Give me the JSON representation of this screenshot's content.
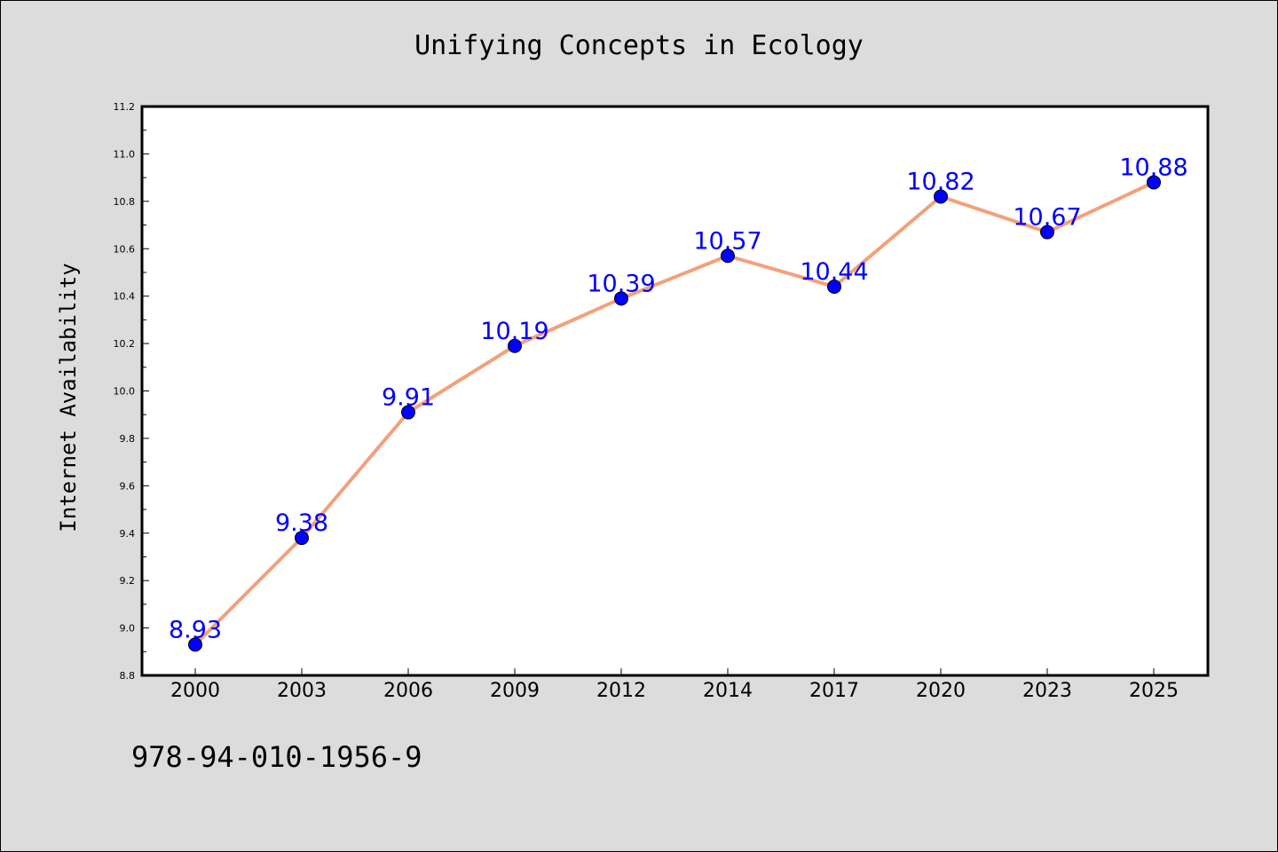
{
  "chart_data": {
    "type": "line",
    "title": "Unifying Concepts in Ecology",
    "xlabel": "",
    "ylabel": "Internet Availability",
    "categories": [
      "2000",
      "2003",
      "2006",
      "2009",
      "2012",
      "2014",
      "2017",
      "2020",
      "2023",
      "2025"
    ],
    "values": [
      8.93,
      9.38,
      9.91,
      10.19,
      10.39,
      10.57,
      10.44,
      10.82,
      10.67,
      10.88
    ],
    "data_labels": [
      "8.93",
      "9.38",
      "9.91",
      "10.19",
      "10.39",
      "10.57",
      "10.44",
      "10.82",
      "10.67",
      "10.88"
    ],
    "ylim": [
      8.8,
      11.2
    ],
    "yticks": [
      "8.8",
      "9.0",
      "9.2",
      "9.4",
      "9.6",
      "9.8",
      "10.0",
      "10.2",
      "10.4",
      "10.6",
      "10.8",
      "11.0",
      "11.2"
    ],
    "grid": false,
    "line_color": "#f4a07a",
    "marker_color": "#0000ff",
    "label_color": "#0000ff"
  },
  "footer": {
    "isbn": "978-94-010-1956-9"
  }
}
